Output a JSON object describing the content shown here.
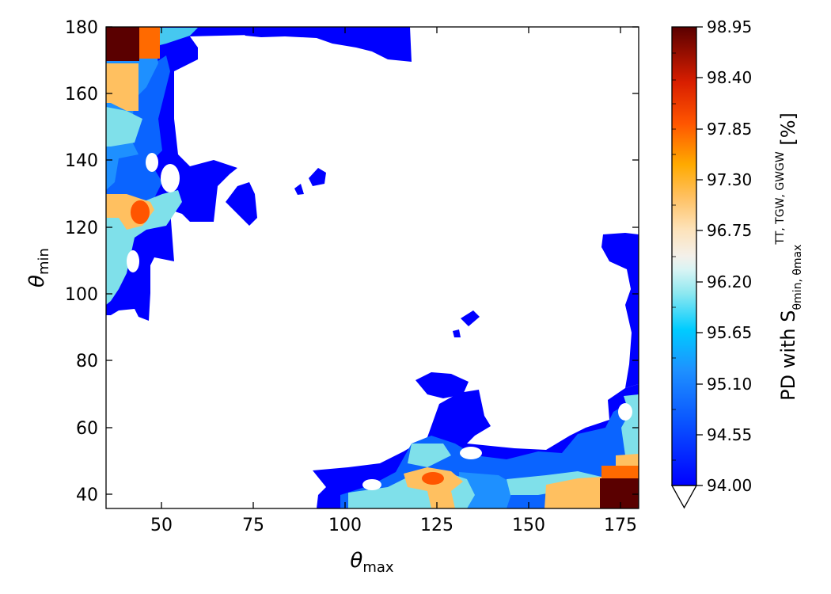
{
  "chart_data": {
    "type": "heatmap",
    "title": "",
    "xlabel": {
      "base": "θ",
      "sub": "max"
    },
    "ylabel": {
      "base": "θ",
      "sub": "min"
    },
    "xlim": [
      35,
      180
    ],
    "ylim": [
      35.5,
      180
    ],
    "x_ticks": [
      50,
      75,
      100,
      125,
      150,
      175
    ],
    "y_ticks": [
      40,
      60,
      80,
      100,
      120,
      140,
      160,
      180
    ],
    "colorbar": {
      "label": {
        "prefix": "PD with S",
        "sup": "TT, TGW, GWGW",
        "sub": "θmin, θmax",
        "suffix": " [%]"
      },
      "range": [
        94.0,
        98.95
      ],
      "tick_labels": [
        "94.00",
        "94.55",
        "95.10",
        "95.65",
        "96.20",
        "96.75",
        "97.30",
        "97.85",
        "98.40",
        "98.95"
      ],
      "extend": "min",
      "colormap": "jet-like: blue → azure → light cyan → white → light orange → orange → red → dark red",
      "under_color": "#ffffff"
    },
    "regions": [
      {
        "label": "top-left corner maximum",
        "theta_max": [
          35,
          42
        ],
        "theta_min": [
          170,
          180
        ],
        "pd": 98.95
      },
      {
        "label": "top-left orange",
        "theta_max": [
          44,
          49
        ],
        "theta_min": [
          171,
          180
        ],
        "pd": 97.9
      },
      {
        "label": "left hot spot",
        "theta_max": [
          42,
          47
        ],
        "theta_min": [
          120,
          126
        ],
        "pd": 97.9
      },
      {
        "label": "bottom-center hot spot",
        "theta_max": [
          121,
          128
        ],
        "theta_min": [
          43,
          47
        ],
        "pd": 97.9
      },
      {
        "label": "bottom-right corner maximum",
        "theta_max": [
          170,
          180
        ],
        "theta_min": [
          35.5,
          45
        ],
        "pd": 98.95
      },
      {
        "label": "bottom-right orange",
        "theta_max": [
          170,
          180
        ],
        "theta_min": [
          45,
          50
        ],
        "pd": 97.9
      },
      {
        "label": "left blue band",
        "theta_max": [
          35,
          55
        ],
        "theta_min": [
          93,
          180
        ],
        "pd": 94.9
      },
      {
        "label": "bottom blue band",
        "theta_max": [
          92,
          180
        ],
        "theta_min": [
          35.5,
          60
        ],
        "pd": 94.9
      },
      {
        "label": "right edge blue",
        "theta_max": [
          170,
          180
        ],
        "theta_min": [
          50,
          118
        ],
        "pd": 94.2
      },
      {
        "label": "top edge blue",
        "theta_max": [
          55,
          120
        ],
        "theta_min": [
          170,
          180
        ],
        "pd": 94.2
      },
      {
        "label": "all other parameters",
        "value": "below 94.00 (white)"
      }
    ]
  }
}
